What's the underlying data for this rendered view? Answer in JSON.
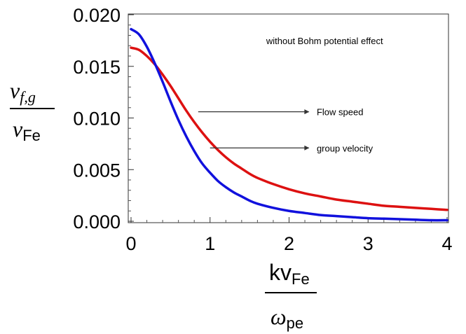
{
  "chart_data": {
    "type": "line",
    "title": "",
    "xlim": [
      0,
      4
    ],
    "ylim": [
      0,
      0.02
    ],
    "x_ticks": [
      0,
      1,
      2,
      3,
      4
    ],
    "x_tick_labels": [
      "0",
      "1",
      "2",
      "3",
      "4"
    ],
    "y_ticks": [
      0,
      0.005,
      0.01,
      0.015,
      0.02
    ],
    "y_tick_labels": [
      "0.000",
      "0.005",
      "0.010",
      "0.015",
      "0.020"
    ],
    "ylabel": {
      "num_base": "v",
      "num_sub": "f,g",
      "den_base": "v",
      "den_sub": "Fe"
    },
    "xlabel": {
      "num_base": "kv",
      "num_sub": "Fe",
      "den_base": "ω",
      "den_sub": "pe"
    },
    "grid": false,
    "annotations": [
      {
        "text": "without Bohm potential effect",
        "x": 2.45,
        "y": 0.0175
      },
      {
        "text": "Flow speed",
        "x": 2.35,
        "y": 0.0106,
        "arrow_from": [
          0.85,
          0.0106
        ],
        "arrow_to": [
          2.25,
          0.0106
        ]
      },
      {
        "text": "group velocity",
        "x": 2.35,
        "y": 0.0071,
        "arrow_from": [
          1.0,
          0.0071
        ],
        "arrow_to": [
          2.25,
          0.0071
        ]
      }
    ],
    "series": [
      {
        "color": "#dd1111",
        "x": [
          0,
          0.1,
          0.2,
          0.3,
          0.4,
          0.5,
          0.6,
          0.7,
          0.8,
          0.9,
          1.0,
          1.1,
          1.2,
          1.3,
          1.4,
          1.5,
          1.6,
          1.8,
          2.0,
          2.2,
          2.4,
          2.6,
          2.8,
          3.0,
          3.2,
          3.4,
          3.6,
          3.8,
          4.0
        ],
        "y": [
          0.0168,
          0.0166,
          0.016,
          0.0152,
          0.0142,
          0.0131,
          0.0119,
          0.0107,
          0.0096,
          0.0086,
          0.0077,
          0.0069,
          0.0062,
          0.0056,
          0.0051,
          0.0046,
          0.0042,
          0.0036,
          0.0031,
          0.0027,
          0.0024,
          0.0021,
          0.0019,
          0.0017,
          0.0015,
          0.0014,
          0.0013,
          0.0012,
          0.0011
        ]
      },
      {
        "color": "#1111dd",
        "x": [
          0,
          0.1,
          0.2,
          0.3,
          0.4,
          0.5,
          0.6,
          0.7,
          0.8,
          0.9,
          1.0,
          1.1,
          1.2,
          1.3,
          1.4,
          1.5,
          1.6,
          1.8,
          2.0,
          2.2,
          2.4,
          2.6,
          2.8,
          3.0,
          3.2,
          3.4,
          3.6,
          3.8,
          4.0
        ],
        "y": [
          0.0186,
          0.0181,
          0.0169,
          0.0153,
          0.0135,
          0.0116,
          0.0098,
          0.0082,
          0.0068,
          0.0056,
          0.0047,
          0.0039,
          0.0033,
          0.0028,
          0.0024,
          0.002,
          0.0017,
          0.0013,
          0.001,
          0.0008,
          0.0006,
          0.0005,
          0.0004,
          0.0003,
          0.00025,
          0.0002,
          0.00015,
          0.0001,
          0.0001
        ]
      }
    ]
  }
}
